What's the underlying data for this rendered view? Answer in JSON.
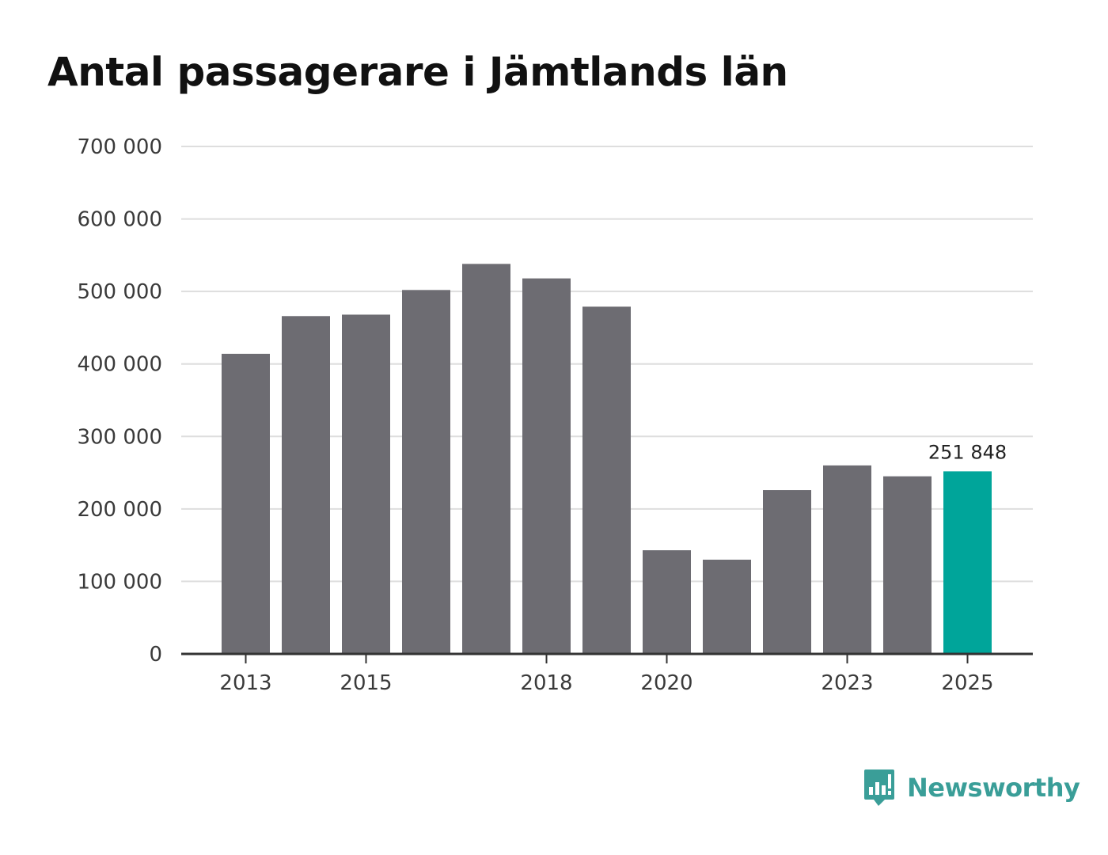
{
  "title": "Antal passagerare i Jämtlands län",
  "brand": {
    "name": "Newsworthy",
    "icon": "newsworthy-logo-icon",
    "color": "#3a9e98"
  },
  "colors": {
    "bar": "#6d6c72",
    "highlight": "#00a59a",
    "grid": "#dedede",
    "axis": "#333333"
  },
  "chart_data": {
    "type": "bar",
    "title": "Antal passagerare i Jämtlands län",
    "xlabel": "",
    "ylabel": "",
    "ylim": [
      0,
      700000
    ],
    "yticks": [
      0,
      100000,
      200000,
      300000,
      400000,
      500000,
      600000,
      700000
    ],
    "ytick_labels": [
      "0",
      "100 000",
      "200 000",
      "300 000",
      "400 000",
      "500 000",
      "600 000",
      "700 000"
    ],
    "categories": [
      "2013",
      "2014",
      "2015",
      "2016",
      "2017",
      "2018",
      "2019",
      "2020",
      "2021",
      "2022",
      "2023",
      "2024",
      "2025"
    ],
    "xtick_labels": [
      "2013",
      "",
      "2015",
      "",
      "",
      "2018",
      "",
      "2020",
      "",
      "",
      "2023",
      "",
      "2025"
    ],
    "values": [
      414000,
      466000,
      468000,
      502000,
      538000,
      518000,
      479000,
      143000,
      130000,
      226000,
      260000,
      245000,
      251848
    ],
    "highlight_index": 12,
    "data_labels": [
      {
        "index": 12,
        "text": "251 848"
      }
    ],
    "grid": true
  }
}
